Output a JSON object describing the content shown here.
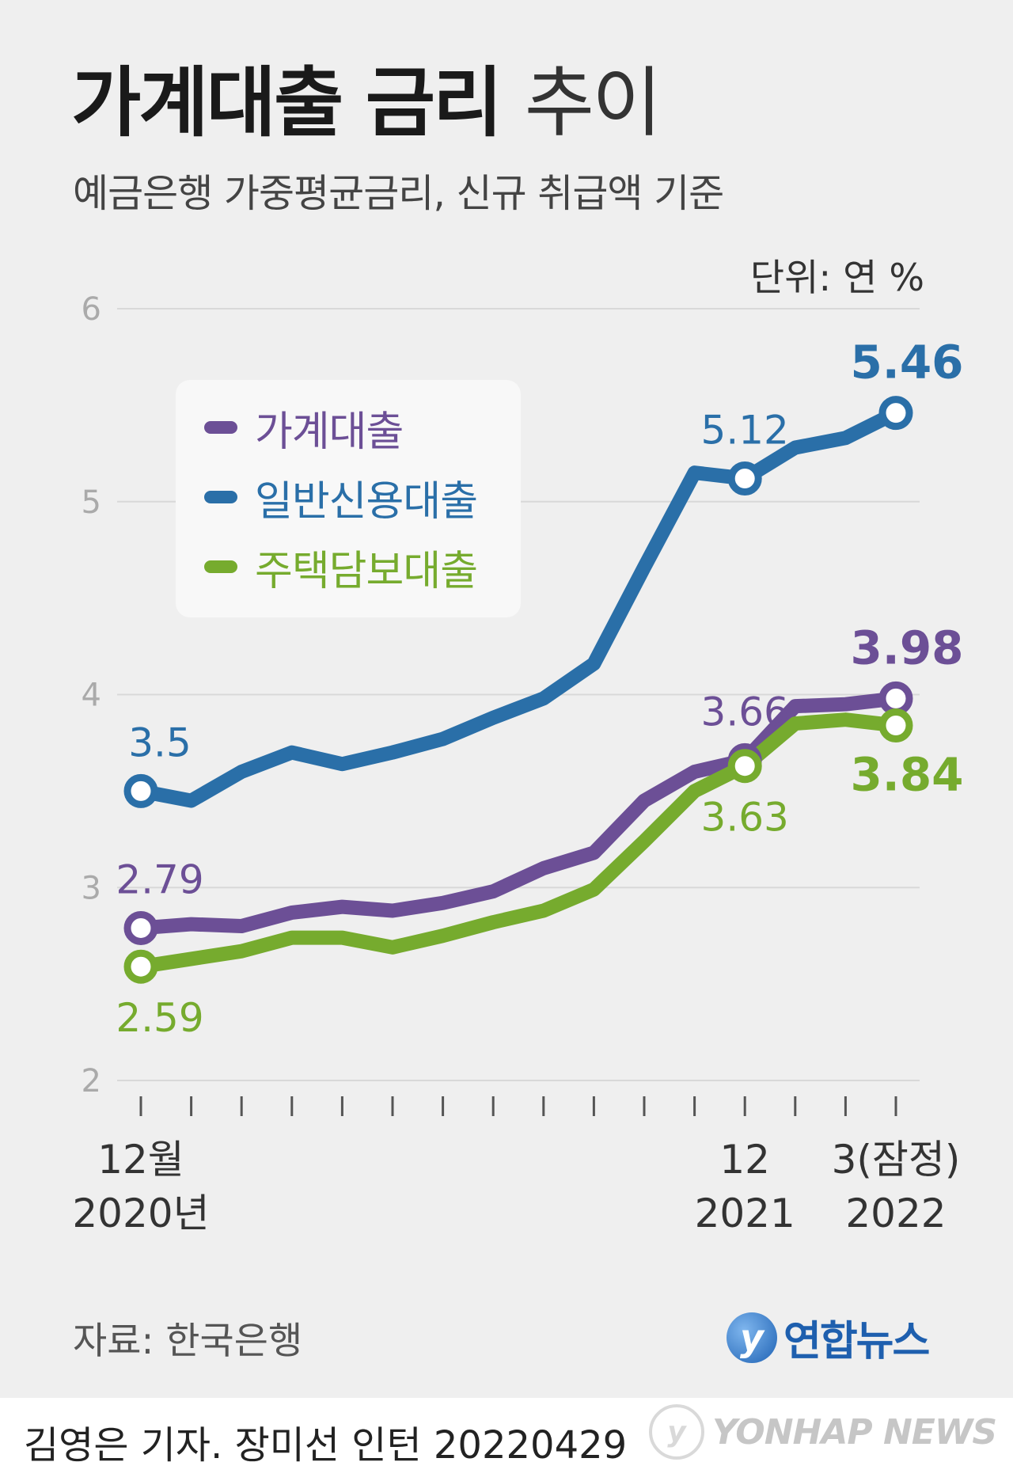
{
  "title": {
    "bold": "가계대출 금리",
    "light": "추이"
  },
  "subtitle": "예금은행 가중평균금리, 신규 취급액 기준",
  "unit": "단위: 연 %",
  "chart_data": {
    "type": "line",
    "ylim": [
      2,
      6
    ],
    "y_ticks": [
      "2",
      "3",
      "4",
      "5",
      "6"
    ],
    "grid": true,
    "legend_position": "top-left",
    "x_labels": [
      {
        "index": 0,
        "lines": [
          "12월",
          "2020년"
        ]
      },
      {
        "index": 12,
        "lines": [
          "12",
          "2021"
        ]
      },
      {
        "index": 15,
        "lines": [
          "3(잠정)",
          "2022"
        ]
      }
    ],
    "point_count": 16,
    "series": [
      {
        "name": "일반신용대출",
        "color": "#2a6fa8",
        "values": [
          3.5,
          3.45,
          3.6,
          3.7,
          3.64,
          3.7,
          3.77,
          3.88,
          3.98,
          4.16,
          4.66,
          5.15,
          5.12,
          5.28,
          5.33,
          5.46
        ],
        "labels": [
          {
            "index": 0,
            "text": "3.5",
            "pos": "above"
          },
          {
            "index": 12,
            "text": "5.12",
            "pos": "above"
          },
          {
            "index": 15,
            "text": "5.46",
            "pos": "above",
            "bold": true
          }
        ]
      },
      {
        "name": "가계대출",
        "color": "#6c4f96",
        "values": [
          2.79,
          2.81,
          2.8,
          2.87,
          2.9,
          2.88,
          2.92,
          2.98,
          3.1,
          3.18,
          3.45,
          3.6,
          3.66,
          3.94,
          3.95,
          3.98
        ],
        "labels": [
          {
            "index": 0,
            "text": "2.79",
            "pos": "above"
          },
          {
            "index": 12,
            "text": "3.66",
            "pos": "above"
          },
          {
            "index": 15,
            "text": "3.98",
            "pos": "above",
            "bold": true
          }
        ]
      },
      {
        "name": "주택담보대출",
        "color": "#76ab2e",
        "values": [
          2.59,
          2.63,
          2.67,
          2.74,
          2.74,
          2.69,
          2.75,
          2.82,
          2.88,
          2.99,
          3.24,
          3.5,
          3.63,
          3.85,
          3.87,
          3.84
        ],
        "labels": [
          {
            "index": 0,
            "text": "2.59",
            "pos": "below"
          },
          {
            "index": 12,
            "text": "3.63",
            "pos": "below"
          },
          {
            "index": 15,
            "text": "3.84",
            "pos": "below",
            "bold": true
          }
        ]
      }
    ]
  },
  "source": "자료: 한국은행",
  "logo": {
    "mark": "y",
    "text": "연합뉴스"
  },
  "credit": "김영은 기자. 장미선 인턴  20220429",
  "watermark": "YONHAP NEWS"
}
